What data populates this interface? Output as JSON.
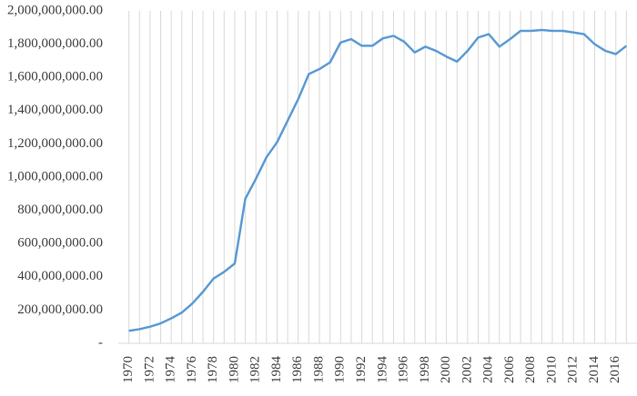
{
  "chart_data": {
    "type": "line",
    "x": [
      1970,
      1971,
      1972,
      1973,
      1974,
      1975,
      1976,
      1977,
      1978,
      1979,
      1980,
      1981,
      1982,
      1983,
      1984,
      1985,
      1986,
      1987,
      1988,
      1989,
      1990,
      1991,
      1992,
      1993,
      1994,
      1995,
      1996,
      1997,
      1998,
      1999,
      2000,
      2001,
      2002,
      2003,
      2004,
      2005,
      2006,
      2007,
      2008,
      2009,
      2010,
      2011,
      2012,
      2013,
      2014,
      2015,
      2016,
      2017
    ],
    "series": [
      {
        "color": "#5b9bd5",
        "values": [
          75000000,
          85000000,
          100000000,
          120000000,
          150000000,
          185000000,
          240000000,
          310000000,
          390000000,
          430000000,
          480000000,
          870000000,
          990000000,
          1120000000,
          1210000000,
          1340000000,
          1470000000,
          1620000000,
          1650000000,
          1690000000,
          1810000000,
          1830000000,
          1790000000,
          1790000000,
          1835000000,
          1850000000,
          1815000000,
          1750000000,
          1785000000,
          1760000000,
          1725000000,
          1695000000,
          1760000000,
          1840000000,
          1860000000,
          1785000000,
          1830000000,
          1880000000,
          1880000000,
          1885000000,
          1880000000,
          1880000000,
          1870000000,
          1860000000,
          1800000000,
          1760000000,
          1740000000,
          1790000000
        ]
      }
    ],
    "xlim": [
      1969,
      2018
    ],
    "xticks": [
      1970,
      1972,
      1974,
      1976,
      1978,
      1980,
      1982,
      1984,
      1986,
      1988,
      1990,
      1992,
      1994,
      1996,
      1998,
      2000,
      2002,
      2004,
      2006,
      2008,
      2010,
      2012,
      2014,
      2016
    ],
    "ylim": [
      0,
      2000000000
    ],
    "yticks": [
      {
        "value": 0,
        "label": "-"
      },
      {
        "value": 200000000,
        "label": "200,000,000.00"
      },
      {
        "value": 400000000,
        "label": "400,000,000.00"
      },
      {
        "value": 600000000,
        "label": "600,000,000.00"
      },
      {
        "value": 800000000,
        "label": "800,000,000.00"
      },
      {
        "value": 1000000000,
        "label": "1,000,000,000.00"
      },
      {
        "value": 1200000000,
        "label": "1,200,000,000.00"
      },
      {
        "value": 1400000000,
        "label": "1,400,000,000.00"
      },
      {
        "value": 1600000000,
        "label": "1,600,000,000.00"
      },
      {
        "value": 1800000000,
        "label": "1,800,000,000.00"
      },
      {
        "value": 2000000000,
        "label": "2,000,000,000.00"
      }
    ],
    "grid": true
  }
}
